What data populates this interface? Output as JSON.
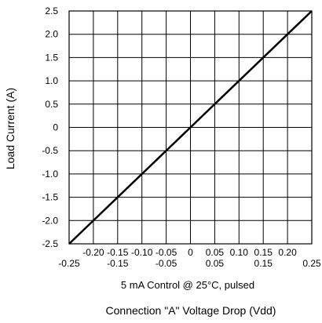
{
  "chart_data": {
    "type": "line",
    "title": "",
    "xlabel": "Connection \"A\" Voltage Drop (Vdd)",
    "ylabel": "Load Current (A)",
    "note": "5 mA Control @ 25°C, pulsed",
    "xlim": [
      -0.25,
      0.25
    ],
    "ylim": [
      -2.5,
      2.5
    ],
    "grid": true,
    "x_ticks_upper": [
      "-0.20",
      "-0.15",
      "-0.10",
      "-0.05",
      "0",
      "0.05",
      "0.10",
      "0.15",
      "0.20"
    ],
    "x_ticks_lower": [
      "-0.25",
      "-0.15",
      "-0.05",
      "0.05",
      "0.15",
      "0.25"
    ],
    "y_ticks": [
      "2.5",
      "2.0",
      "1.5",
      "1.0",
      "0.5",
      "0",
      "-0.5",
      "-1.0",
      "-1.5",
      "-2.0",
      "-2.5"
    ],
    "series": [
      {
        "x": [
          -0.25,
          0.25
        ],
        "y": [
          -2.5,
          2.5
        ],
        "color": "#000000"
      }
    ]
  }
}
